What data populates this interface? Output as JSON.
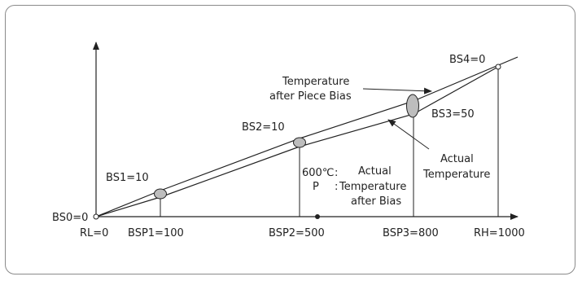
{
  "diagram": {
    "axis": {
      "rl": "RL=0",
      "bsp1": "BSP1=100",
      "bsp2": "BSP2=500",
      "bsp3": "BSP3=800",
      "rh": "RH=1000"
    },
    "points": {
      "bs0": "BS0=0",
      "bs1": "BS1=10",
      "bs2": "BS2=10",
      "bs3": "BS3=50",
      "bs4": "BS4=0"
    },
    "labels": {
      "temp_after_piece_bias_line1": "Temperature",
      "temp_after_piece_bias_line2": "after Piece Bias",
      "actual_temp_line1": "Actual",
      "actual_temp_line2": "Temperature",
      "actual_temp_after_bias_line1": "Actual",
      "actual_temp_after_bias_line2": "Temperature",
      "actual_temp_after_bias_line3": "after Bias",
      "marker_600": "600℃",
      "marker_p": "P",
      "colon": ":"
    },
    "colors": {
      "line": "#222222",
      "ellipse_fill": "#bdbdbd",
      "frame": "#8a8a8a"
    }
  }
}
